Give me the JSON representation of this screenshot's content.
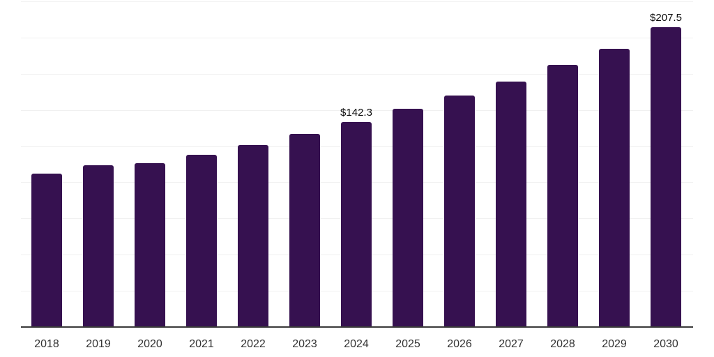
{
  "chart_data": {
    "type": "bar",
    "title": "",
    "xlabel": "",
    "ylabel": "",
    "categories": [
      "2018",
      "2019",
      "2020",
      "2021",
      "2022",
      "2023",
      "2024",
      "2025",
      "2026",
      "2027",
      "2028",
      "2029",
      "2030"
    ],
    "values": [
      106.6,
      112.1,
      113.8,
      119.3,
      126.4,
      134.1,
      142.3,
      151.4,
      160.6,
      170.2,
      181.5,
      192.7,
      207.5
    ],
    "point_labels": [
      {
        "category": "2024",
        "text": "$142.3"
      },
      {
        "category": "2030",
        "text": "$207.5"
      }
    ],
    "ylim": [
      0,
      225
    ],
    "grid_step": 25,
    "grid": "horizontal",
    "legend": "none",
    "colors": {
      "bar": "#361150",
      "gridline": "#f0f0f0",
      "axis_line": "#3a3a3a",
      "tick_label": "#333333",
      "value_label": "#0b0b0b",
      "background": "#ffffff"
    }
  }
}
